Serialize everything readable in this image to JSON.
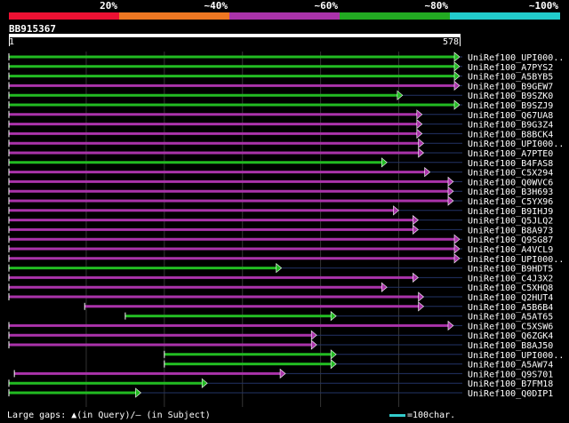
{
  "legend": {
    "labels": [
      "20%",
      "~40%",
      "~60%",
      "~80%",
      "~100%"
    ],
    "colors": [
      "#ee1133",
      "#ee7722",
      "#aa33aa",
      "#22aa22",
      "#22cccc"
    ]
  },
  "query": {
    "name": "BB915367",
    "start": "1",
    "end": "578",
    "length": 578
  },
  "hits": [
    {
      "label": "UniRef100_UPI000..",
      "color": "#22bb22",
      "qstart": 1,
      "qend": 578
    },
    {
      "label": "UniRef100_A7PYS2",
      "color": "#22bb22",
      "qstart": 1,
      "qend": 578
    },
    {
      "label": "UniRef100_A5BYB5",
      "color": "#22bb22",
      "qstart": 1,
      "qend": 578
    },
    {
      "label": "UniRef100_B9GEW7",
      "color": "#aa33aa",
      "qstart": 1,
      "qend": 578
    },
    {
      "label": "UniRef100_B9SZK0",
      "color": "#22bb22",
      "qstart": 1,
      "qend": 505
    },
    {
      "label": "UniRef100_B9SZJ9",
      "color": "#22bb22",
      "qstart": 1,
      "qend": 578
    },
    {
      "label": "UniRef100_Q67UA8",
      "color": "#aa33aa",
      "qstart": 1,
      "qend": 530
    },
    {
      "label": "UniRef100_B9G3Z4",
      "color": "#aa33aa",
      "qstart": 1,
      "qend": 530
    },
    {
      "label": "UniRef100_B8BCK4",
      "color": "#aa33aa",
      "qstart": 1,
      "qend": 530
    },
    {
      "label": "UniRef100_UPI000..",
      "color": "#aa33aa",
      "qstart": 1,
      "qend": 532
    },
    {
      "label": "UniRef100_A7PTE0",
      "color": "#aa33aa",
      "qstart": 1,
      "qend": 532
    },
    {
      "label": "UniRef100_B4FAS8",
      "color": "#22bb22",
      "qstart": 1,
      "qend": 485
    },
    {
      "label": "UniRef100_C5X294",
      "color": "#aa33aa",
      "qstart": 1,
      "qend": 540
    },
    {
      "label": "UniRef100_Q0WVC6",
      "color": "#aa33aa",
      "qstart": 1,
      "qend": 570
    },
    {
      "label": "UniRef100_B3H693",
      "color": "#aa33aa",
      "qstart": 1,
      "qend": 570
    },
    {
      "label": "UniRef100_C5YX96",
      "color": "#aa33aa",
      "qstart": 1,
      "qend": 570
    },
    {
      "label": "UniRef100_B9IHJ9",
      "color": "#aa33aa",
      "qstart": 1,
      "qend": 500
    },
    {
      "label": "UniRef100_Q5JLQ2",
      "color": "#aa33aa",
      "qstart": 1,
      "qend": 525
    },
    {
      "label": "UniRef100_B8A973",
      "color": "#aa33aa",
      "qstart": 1,
      "qend": 525
    },
    {
      "label": "UniRef100_Q9SG87",
      "color": "#aa33aa",
      "qstart": 1,
      "qend": 578
    },
    {
      "label": "UniRef100_A4VCL9",
      "color": "#aa33aa",
      "qstart": 1,
      "qend": 578
    },
    {
      "label": "UniRef100_UPI000..",
      "color": "#aa33aa",
      "qstart": 1,
      "qend": 578
    },
    {
      "label": "UniRef100_B9HDT5",
      "color": "#22bb22",
      "qstart": 1,
      "qend": 350
    },
    {
      "label": "UniRef100_C4J3X2",
      "color": "#aa33aa",
      "qstart": 1,
      "qend": 525
    },
    {
      "label": "UniRef100_C5XHQ8",
      "color": "#aa33aa",
      "qstart": 1,
      "qend": 485
    },
    {
      "label": "UniRef100_Q2HUT4",
      "color": "#aa33aa",
      "qstart": 1,
      "qend": 532
    },
    {
      "label": "UniRef100_A5B6B4",
      "color": "#aa33aa",
      "qstart": 98,
      "qend": 532
    },
    {
      "label": "UniRef100_A5AT65",
      "color": "#22bb22",
      "qstart": 150,
      "qend": 420
    },
    {
      "label": "UniRef100_C5XSW6",
      "color": "#aa33aa",
      "qstart": 1,
      "qend": 570
    },
    {
      "label": "UniRef100_Q6ZGK4",
      "color": "#aa33aa",
      "qstart": 1,
      "qend": 395
    },
    {
      "label": "UniRef100_B8AJ50",
      "color": "#aa33aa",
      "qstart": 1,
      "qend": 395
    },
    {
      "label": "UniRef100_UPI000..",
      "color": "#22bb22",
      "qstart": 200,
      "qend": 420
    },
    {
      "label": "UniRef100_A5AW74",
      "color": "#22bb22",
      "qstart": 200,
      "qend": 420
    },
    {
      "label": "UniRef100_Q9S701",
      "color": "#aa33aa",
      "qstart": 8,
      "qend": 355
    },
    {
      "label": "UniRef100_B7FM18",
      "color": "#22bb22",
      "qstart": 1,
      "qend": 255
    },
    {
      "label": "UniRef100_Q0DIP1",
      "color": "#22bb22",
      "qstart": 1,
      "qend": 170
    }
  ],
  "footer": {
    "large_gaps_text": "Large gaps: ▲(in Query)/– (in Subject)",
    "scale_text": "=100char."
  }
}
